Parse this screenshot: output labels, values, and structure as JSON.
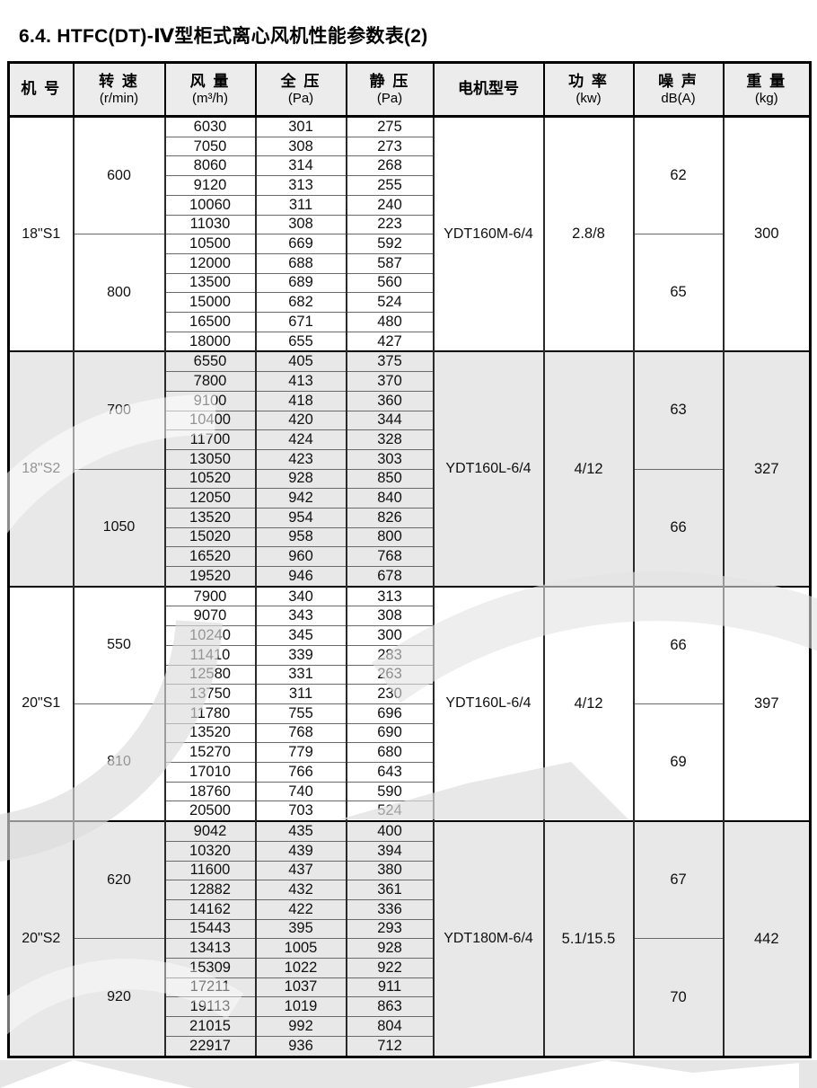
{
  "page": {
    "title": "6.4. HTFC(DT)-Ⅳ型柜式离心风机性能参数表(2)"
  },
  "colors": {
    "section_shade": "#e8e8e8",
    "header_shade": "#ececec",
    "band_shade": "#e6e6e6"
  },
  "table": {
    "headers": [
      {
        "line1": "机 号",
        "line2": ""
      },
      {
        "line1": "转 速",
        "line2": "(r/min)"
      },
      {
        "line1": "风 量",
        "line2": "(m³/h)"
      },
      {
        "line1": "全 压",
        "line2": "(Pa)"
      },
      {
        "line1": "静 压",
        "line2": "(Pa)"
      },
      {
        "line1": "电机型号",
        "line2": ""
      },
      {
        "line1": "功 率",
        "line2": "(kw)"
      },
      {
        "line1": "噪 声",
        "line2": "dB(A)"
      },
      {
        "line1": "重 量",
        "line2": "(kg)"
      }
    ],
    "sections": [
      {
        "model": "18\"S1",
        "motor": "YDT160M-6/4",
        "power": "2.8/8",
        "weight": "300",
        "shaded": false,
        "speed_groups": [
          {
            "speed": "600",
            "noise": "62",
            "rows": [
              [
                6030,
                301,
                275
              ],
              [
                7050,
                308,
                273
              ],
              [
                8060,
                314,
                268
              ],
              [
                9120,
                313,
                255
              ],
              [
                10060,
                311,
                240
              ],
              [
                11030,
                308,
                223
              ]
            ]
          },
          {
            "speed": "800",
            "noise": "65",
            "rows": [
              [
                10500,
                669,
                592
              ],
              [
                12000,
                688,
                587
              ],
              [
                13500,
                689,
                560
              ],
              [
                15000,
                682,
                524
              ],
              [
                16500,
                671,
                480
              ],
              [
                18000,
                655,
                427
              ]
            ]
          }
        ]
      },
      {
        "model": "18\"S2",
        "motor": "YDT160L-6/4",
        "power": "4/12",
        "weight": "327",
        "shaded": true,
        "speed_groups": [
          {
            "speed": "700",
            "noise": "63",
            "rows": [
              [
                6550,
                405,
                375
              ],
              [
                7800,
                413,
                370
              ],
              [
                9100,
                418,
                360
              ],
              [
                10400,
                420,
                344
              ],
              [
                11700,
                424,
                328
              ],
              [
                13050,
                423,
                303
              ]
            ]
          },
          {
            "speed": "1050",
            "noise": "66",
            "rows": [
              [
                10520,
                928,
                850
              ],
              [
                12050,
                942,
                840
              ],
              [
                13520,
                954,
                826
              ],
              [
                15020,
                958,
                800
              ],
              [
                16520,
                960,
                768
              ],
              [
                19520,
                946,
                678
              ]
            ]
          }
        ]
      },
      {
        "model": "20\"S1",
        "motor": "YDT160L-6/4",
        "power": "4/12",
        "weight": "397",
        "shaded": false,
        "speed_groups": [
          {
            "speed": "550",
            "noise": "66",
            "rows": [
              [
                7900,
                340,
                313
              ],
              [
                9070,
                343,
                308
              ],
              [
                10240,
                345,
                300
              ],
              [
                11410,
                339,
                283
              ],
              [
                12580,
                331,
                263
              ],
              [
                13750,
                311,
                230
              ]
            ]
          },
          {
            "speed": "810",
            "noise": "69",
            "rows": [
              [
                11780,
                755,
                696
              ],
              [
                13520,
                768,
                690
              ],
              [
                15270,
                779,
                680
              ],
              [
                17010,
                766,
                643
              ],
              [
                18760,
                740,
                590
              ],
              [
                20500,
                703,
                524
              ]
            ]
          }
        ]
      },
      {
        "model": "20\"S2",
        "motor": "YDT180M-6/4",
        "power": "5.1/15.5",
        "weight": "442",
        "shaded": true,
        "speed_groups": [
          {
            "speed": "620",
            "noise": "67",
            "rows": [
              [
                9042,
                435,
                400
              ],
              [
                10320,
                439,
                394
              ],
              [
                11600,
                437,
                380
              ],
              [
                12882,
                432,
                361
              ],
              [
                14162,
                422,
                336
              ],
              [
                15443,
                395,
                293
              ]
            ]
          },
          {
            "speed": "920",
            "noise": "70",
            "rows": [
              [
                13413,
                1005,
                928
              ],
              [
                15309,
                1022,
                922
              ],
              [
                17211,
                1037,
                911
              ],
              [
                19113,
                1019,
                863
              ],
              [
                21015,
                992,
                804
              ],
              [
                22917,
                936,
                712
              ]
            ]
          }
        ]
      }
    ]
  }
}
